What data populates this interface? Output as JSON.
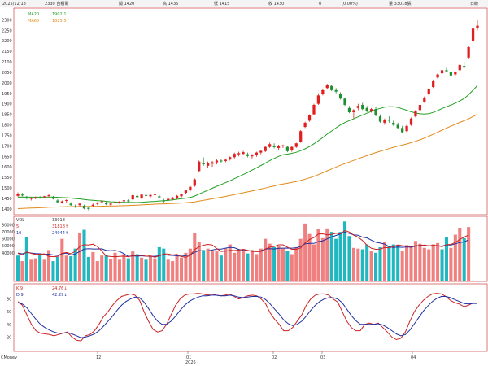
{
  "header": {
    "date": "2025/12/18",
    "code": "2330 台積電",
    "open": "開 1420",
    "high": "高 1435",
    "low": "低 1415",
    "close": "收 1430",
    "change": "0",
    "pct": "(0.00%)",
    "volume": "量 33018張",
    "period": "日線"
  },
  "colors": {
    "up": "#e02020",
    "down": "#1f8f2f",
    "ma_fast": "#20a020",
    "ma_slow": "#e08a1a",
    "vol_up": "#f08080",
    "vol_down": "#20b8c0",
    "k_line": "#cc2222",
    "d_line": "#1f2fa0",
    "panel_border": "#cc4444"
  },
  "chart_data": [
    {
      "type": "candlestick",
      "panel": "price",
      "ylim": [
        1380,
        2340
      ],
      "yticks": [
        "2300",
        "2250",
        "2200",
        "2150",
        "2100",
        "2050",
        "2000",
        "1950",
        "1900",
        "1850",
        "1800",
        "1750",
        "1700",
        "1650",
        "1600",
        "1550",
        "1500",
        "1450",
        "1400"
      ],
      "legend": [
        {
          "label": "MA20",
          "value": "1902.1",
          "color": "#20a020"
        },
        {
          "label": "MA60",
          "value": "1825.5↑",
          "color": "#e08a1a"
        }
      ],
      "candles": [
        [
          1462,
          1478,
          1458,
          1472
        ],
        [
          1468,
          1476,
          1460,
          1464
        ],
        [
          1455,
          1462,
          1445,
          1450
        ],
        [
          1448,
          1456,
          1440,
          1452
        ],
        [
          1450,
          1458,
          1446,
          1455
        ],
        [
          1454,
          1460,
          1448,
          1451
        ],
        [
          1456,
          1462,
          1450,
          1460
        ],
        [
          1462,
          1470,
          1456,
          1465
        ],
        [
          1455,
          1462,
          1445,
          1448
        ],
        [
          1440,
          1446,
          1428,
          1432
        ],
        [
          1430,
          1440,
          1425,
          1436
        ],
        [
          1438,
          1445,
          1430,
          1442
        ],
        [
          1425,
          1432,
          1415,
          1418
        ],
        [
          1412,
          1420,
          1405,
          1410
        ],
        [
          1418,
          1428,
          1412,
          1425
        ],
        [
          1415,
          1420,
          1398,
          1402
        ],
        [
          1405,
          1412,
          1392,
          1400
        ],
        [
          1415,
          1425,
          1408,
          1420
        ],
        [
          1425,
          1432,
          1418,
          1428
        ],
        [
          1432,
          1440,
          1426,
          1436
        ],
        [
          1430,
          1436,
          1418,
          1422
        ],
        [
          1420,
          1428,
          1412,
          1425
        ],
        [
          1428,
          1436,
          1422,
          1432
        ],
        [
          1430,
          1438,
          1424,
          1434
        ],
        [
          1436,
          1445,
          1430,
          1441
        ],
        [
          1440,
          1446,
          1432,
          1436
        ],
        [
          1445,
          1470,
          1440,
          1465
        ],
        [
          1462,
          1470,
          1452,
          1456
        ],
        [
          1450,
          1472,
          1446,
          1468
        ],
        [
          1466,
          1474,
          1458,
          1462
        ],
        [
          1460,
          1470,
          1454,
          1466
        ],
        [
          1466,
          1478,
          1460,
          1472
        ],
        [
          1460,
          1466,
          1450,
          1455
        ],
        [
          1440,
          1448,
          1430,
          1436
        ],
        [
          1442,
          1452,
          1436,
          1448
        ],
        [
          1446,
          1458,
          1440,
          1454
        ],
        [
          1452,
          1466,
          1446,
          1462
        ],
        [
          1460,
          1474,
          1454,
          1470
        ],
        [
          1476,
          1492,
          1470,
          1488
        ],
        [
          1488,
          1510,
          1482,
          1505
        ],
        [
          1510,
          1545,
          1505,
          1540
        ],
        [
          1580,
          1630,
          1575,
          1625
        ],
        [
          1620,
          1645,
          1605,
          1612
        ],
        [
          1605,
          1625,
          1595,
          1618
        ],
        [
          1615,
          1628,
          1600,
          1622
        ],
        [
          1622,
          1635,
          1612,
          1630
        ],
        [
          1630,
          1638,
          1618,
          1626
        ],
        [
          1628,
          1640,
          1622,
          1634
        ],
        [
          1635,
          1650,
          1630,
          1646
        ],
        [
          1646,
          1668,
          1640,
          1662
        ],
        [
          1660,
          1672,
          1650,
          1665
        ],
        [
          1662,
          1676,
          1655,
          1670
        ],
        [
          1660,
          1668,
          1645,
          1652
        ],
        [
          1650,
          1660,
          1640,
          1656
        ],
        [
          1655,
          1672,
          1648,
          1668
        ],
        [
          1668,
          1680,
          1660,
          1676
        ],
        [
          1675,
          1700,
          1670,
          1695
        ],
        [
          1695,
          1715,
          1690,
          1708
        ],
        [
          1700,
          1712,
          1688,
          1694
        ],
        [
          1690,
          1705,
          1680,
          1700
        ],
        [
          1698,
          1706,
          1690,
          1702
        ],
        [
          1695,
          1700,
          1670,
          1675
        ],
        [
          1678,
          1700,
          1672,
          1695
        ],
        [
          1695,
          1715,
          1690,
          1712
        ],
        [
          1720,
          1775,
          1715,
          1770
        ],
        [
          1790,
          1815,
          1785,
          1810
        ],
        [
          1820,
          1850,
          1815,
          1846
        ],
        [
          1850,
          1900,
          1845,
          1895
        ],
        [
          1900,
          1950,
          1895,
          1940
        ],
        [
          1945,
          1972,
          1940,
          1965
        ],
        [
          1975,
          1995,
          1968,
          1990
        ],
        [
          1985,
          1992,
          1960,
          1965
        ],
        [
          1965,
          1975,
          1950,
          1958
        ],
        [
          1945,
          1955,
          1920,
          1925
        ],
        [
          1925,
          1930,
          1890,
          1895
        ],
        [
          1880,
          1890,
          1855,
          1860
        ],
        [
          1860,
          1875,
          1830,
          1870
        ],
        [
          1880,
          1900,
          1870,
          1890
        ],
        [
          1895,
          1905,
          1870,
          1875
        ],
        [
          1880,
          1890,
          1860,
          1866
        ],
        [
          1866,
          1880,
          1858,
          1875
        ],
        [
          1875,
          1885,
          1840,
          1845
        ],
        [
          1840,
          1850,
          1810,
          1815
        ],
        [
          1810,
          1830,
          1800,
          1825
        ],
        [
          1825,
          1840,
          1810,
          1820
        ],
        [
          1810,
          1820,
          1795,
          1800
        ],
        [
          1800,
          1810,
          1780,
          1785
        ],
        [
          1785,
          1795,
          1760,
          1765
        ],
        [
          1770,
          1800,
          1765,
          1795
        ],
        [
          1800,
          1835,
          1795,
          1830
        ],
        [
          1840,
          1870,
          1835,
          1865
        ],
        [
          1870,
          1900,
          1865,
          1895
        ],
        [
          1910,
          1935,
          1905,
          1930
        ],
        [
          1945,
          1975,
          1940,
          1970
        ],
        [
          1980,
          2015,
          1975,
          2010
        ],
        [
          2025,
          2045,
          2020,
          2040
        ],
        [
          2045,
          2070,
          2040,
          2060
        ],
        [
          2060,
          2075,
          2050,
          2055
        ],
        [
          2050,
          2060,
          2025,
          2035
        ],
        [
          2040,
          2055,
          2030,
          2050
        ],
        [
          2060,
          2090,
          2055,
          2085
        ],
        [
          2080,
          2100,
          2070,
          2078
        ],
        [
          2120,
          2175,
          2115,
          2170
        ],
        [
          2200,
          2265,
          2195,
          2258
        ],
        [
          2262,
          2300,
          2250,
          2272
        ]
      ]
    },
    {
      "type": "bar",
      "panel": "volume",
      "ylim": [
        0,
        90000
      ],
      "yticks": [
        "80000",
        "70000",
        "60000",
        "50000",
        "40000"
      ],
      "legend": [
        {
          "label": "VOL",
          "value": "33018",
          "color": "#333333"
        },
        {
          "label": "5",
          "value": "31818↑",
          "color": "#cc2222"
        },
        {
          "label": "10",
          "value": "24944↑",
          "color": "#1f2fa0"
        }
      ],
      "values": [
        36000,
        28000,
        62000,
        30000,
        32000,
        38000,
        30000,
        44000,
        28000,
        34000,
        60000,
        36000,
        35000,
        46000,
        68000,
        73000,
        34000,
        41000,
        28000,
        36000,
        37000,
        31000,
        40000,
        30000,
        38000,
        32000,
        42000,
        38000,
        33000,
        30000,
        35000,
        32000,
        48000,
        46000,
        30000,
        28000,
        36000,
        33000,
        40000,
        46000,
        68000,
        56000,
        44000,
        46000,
        42000,
        42000,
        36000,
        46000,
        52000,
        40000,
        45000,
        42000,
        39000,
        44000,
        38000,
        46000,
        60000,
        53000,
        48000,
        50000,
        46000,
        43000,
        38000,
        48000,
        60000,
        82000,
        67000,
        52000,
        74000,
        61000,
        75000,
        70000,
        60000,
        70000,
        85000,
        64000,
        47000,
        46000,
        45000,
        52000,
        42000,
        40000,
        48000,
        56000,
        49000,
        52000,
        51000,
        43000,
        51000,
        48000,
        57000,
        53000,
        47000,
        45000,
        52000,
        54000,
        45000,
        62000,
        47000,
        66000,
        76000,
        61000,
        77000
      ],
      "up_down": [
        "d",
        "u",
        "d",
        "u",
        "u",
        "d",
        "u",
        "u",
        "d",
        "d",
        "u",
        "u",
        "d",
        "d",
        "u",
        "d",
        "d",
        "u",
        "u",
        "u",
        "d",
        "u",
        "u",
        "u",
        "u",
        "d",
        "u",
        "d",
        "u",
        "d",
        "u",
        "u",
        "d",
        "d",
        "u",
        "u",
        "u",
        "u",
        "u",
        "u",
        "u",
        "u",
        "d",
        "u",
        "u",
        "u",
        "d",
        "u",
        "u",
        "u",
        "u",
        "u",
        "d",
        "u",
        "u",
        "u",
        "u",
        "u",
        "d",
        "u",
        "u",
        "d",
        "u",
        "u",
        "u",
        "u",
        "u",
        "u",
        "u",
        "u",
        "u",
        "d",
        "d",
        "d",
        "d",
        "d",
        "u",
        "u",
        "d",
        "d",
        "u",
        "d",
        "d",
        "u",
        "d",
        "d",
        "d",
        "u",
        "u",
        "u",
        "u",
        "u",
        "u",
        "u",
        "u",
        "u",
        "d",
        "d",
        "u",
        "u",
        "u",
        "d",
        "u"
      ]
    },
    {
      "type": "line",
      "panel": "kd",
      "ylim": [
        0,
        100
      ],
      "yticks": [
        "80",
        "60",
        "40",
        "20"
      ],
      "legend": [
        {
          "label": "K 9",
          "value": "24.76↓",
          "color": "#cc2222"
        },
        {
          "label": "D 9",
          "value": "42.29↓",
          "color": "#1f2fa0"
        }
      ],
      "series": [
        {
          "name": "K 9",
          "values": [
            76,
            70,
            55,
            40,
            30,
            26,
            25,
            24,
            22,
            24,
            26,
            28,
            20,
            15,
            14,
            22,
            24,
            30,
            40,
            52,
            60,
            70,
            78,
            84,
            86,
            88,
            86,
            78,
            60,
            45,
            32,
            28,
            30,
            40,
            55,
            70,
            80,
            86,
            88,
            88,
            89,
            88,
            86,
            88,
            86,
            85,
            86,
            88,
            84,
            80,
            82,
            85,
            86,
            85,
            80,
            72,
            58,
            48,
            40,
            30,
            30,
            35,
            45,
            55,
            70,
            80,
            86,
            88,
            88,
            86,
            80,
            75,
            60,
            45,
            35,
            30,
            30,
            40,
            42,
            40,
            42,
            35,
            28,
            20,
            16,
            18,
            28,
            45,
            60,
            70,
            78,
            84,
            88,
            89,
            88,
            84,
            78,
            74,
            72,
            68,
            70,
            74,
            73
          ]
        },
        {
          "name": "D 9",
          "values": [
            74,
            72,
            66,
            57,
            48,
            40,
            35,
            31,
            28,
            26,
            26,
            27,
            25,
            22,
            19,
            20,
            22,
            25,
            30,
            37,
            45,
            53,
            62,
            70,
            76,
            80,
            83,
            82,
            75,
            65,
            54,
            45,
            40,
            40,
            45,
            53,
            62,
            70,
            76,
            80,
            83,
            85,
            85,
            86,
            86,
            85,
            85,
            86,
            85,
            83,
            82,
            83,
            84,
            84,
            83,
            79,
            72,
            64,
            56,
            47,
            41,
            38,
            40,
            45,
            53,
            62,
            70,
            76,
            80,
            82,
            82,
            80,
            74,
            64,
            54,
            46,
            40,
            40,
            40,
            40,
            41,
            39,
            35,
            30,
            25,
            22,
            24,
            31,
            41,
            51,
            61,
            69,
            76,
            81,
            84,
            84,
            82,
            79,
            76,
            73,
            72,
            73,
            73
          ]
        }
      ]
    }
  ],
  "x_axis": {
    "labels": [
      "12",
      "01",
      "02",
      "03",
      "04"
    ],
    "year_label": "2026",
    "scale_button": "CMoney"
  }
}
